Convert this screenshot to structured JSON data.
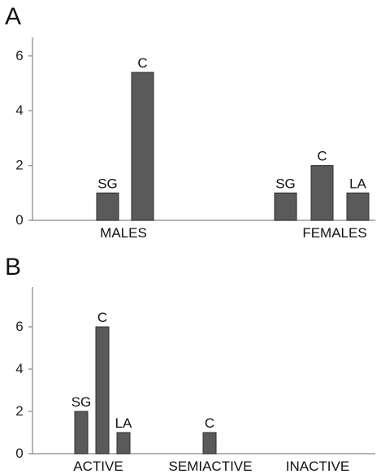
{
  "colors": {
    "bar": "#5a5a5a",
    "bar_stroke": "#2e2e2e",
    "axis": "#9a9a9a",
    "text": "#111111"
  },
  "chart_data": [
    {
      "panel": "A",
      "type": "bar",
      "categories": [
        "MALES",
        "FEMALES"
      ],
      "yticks": [
        0,
        2,
        4,
        6
      ],
      "ylim": [
        0,
        6.6
      ],
      "grid": false,
      "bars": [
        {
          "category": "MALES",
          "label": "SG",
          "value": 1
        },
        {
          "category": "MALES",
          "label": "C",
          "value": 5.4
        },
        {
          "category": "FEMALES",
          "label": "SG",
          "value": 1
        },
        {
          "category": "FEMALES",
          "label": "C",
          "value": 2
        },
        {
          "category": "FEMALES",
          "label": "LA",
          "value": 1
        }
      ]
    },
    {
      "panel": "B",
      "type": "bar",
      "categories": [
        "ACTIVE",
        "SEMIACTIVE",
        "INACTIVE"
      ],
      "yticks": [
        0,
        2,
        4,
        6
      ],
      "ylim": [
        0,
        7.8
      ],
      "grid": false,
      "bars": [
        {
          "category": "ACTIVE",
          "label": "SG",
          "value": 2
        },
        {
          "category": "ACTIVE",
          "label": "C",
          "value": 6
        },
        {
          "category": "ACTIVE",
          "label": "LA",
          "value": 1
        },
        {
          "category": "SEMIACTIVE",
          "label": "C",
          "value": 1
        }
      ]
    }
  ]
}
